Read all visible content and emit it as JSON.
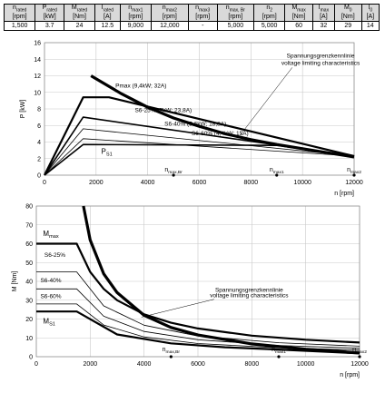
{
  "spec_table": {
    "headers": [
      "n_rated [rpm]",
      "P_rated [kW]",
      "M_rated [Nm]",
      "I_rated [A]",
      "n_max1 [rpm]",
      "n_max2 [rpm]",
      "n_max3 [rpm]",
      "n_max, Br [rpm]",
      "n_2 [rpm]",
      "M_max [Nm]",
      "I_max [A]",
      "M_0 [Nm]",
      "I_0 [A]"
    ],
    "header_main": [
      "n",
      "P",
      "M",
      "I",
      "n",
      "n",
      "n",
      "n",
      "n",
      "M",
      "I",
      "M",
      "I"
    ],
    "header_sub": [
      "rated",
      "rated",
      "rated",
      "rated",
      "max1",
      "max2",
      "max3",
      "max, Br",
      "2",
      "max",
      "max",
      "0",
      "0"
    ],
    "header_unit": [
      "[rpm]",
      "[kW]",
      "[Nm]",
      "[A]",
      "[rpm]",
      "[rpm]",
      "[rpm]",
      "[rpm]",
      "[rpm]",
      "[Nm]",
      "[A]",
      "[Nm]",
      "[A]"
    ],
    "values": [
      "1,500",
      "3.7",
      "24",
      "12.5",
      "9,000",
      "12,000",
      "-",
      "5,000",
      "5,000",
      "60",
      "32",
      "29",
      "14"
    ]
  },
  "chart_data": [
    {
      "type": "line",
      "xlabel": "n [rpm]",
      "ylabel": "P [kW]",
      "xlim": [
        0,
        12000
      ],
      "ylim": [
        0,
        16
      ],
      "xticks": [
        0,
        2000,
        4000,
        6000,
        8000,
        10000,
        12000
      ],
      "yticks": [
        0,
        2,
        4,
        6,
        8,
        10,
        12,
        14,
        16
      ],
      "grid": true,
      "series": [
        {
          "name": "Pmax (9,4kW; 32A)",
          "x": [
            0,
            1500,
            2500,
            12000
          ],
          "y": [
            0,
            9.4,
            9.4,
            2.3
          ]
        },
        {
          "name": "S6-25% (7kW; 23,8A)",
          "x": [
            0,
            1500,
            12000
          ],
          "y": [
            0,
            7.0,
            2.3
          ]
        },
        {
          "name": "S6-40% (5,6kW; 18,8A)",
          "x": [
            0,
            1500,
            12000
          ],
          "y": [
            0,
            5.6,
            2.3
          ]
        },
        {
          "name": "S6-60% (4,4kW; 15A)",
          "x": [
            0,
            1500,
            12000
          ],
          "y": [
            0,
            4.4,
            2.3
          ]
        },
        {
          "name": "P_S1",
          "x": [
            0,
            1500,
            9000,
            12000
          ],
          "y": [
            0,
            3.7,
            3.6,
            2.3
          ]
        },
        {
          "name": "Spannungsgrenzkennlinie voltage limiting characteristics",
          "x": [
            1800,
            3000,
            4000,
            5000,
            6000,
            7000,
            8000,
            9000,
            10000,
            11000,
            12000
          ],
          "y": [
            12.0,
            9.8,
            8.2,
            6.9,
            5.9,
            5.0,
            4.3,
            3.7,
            3.2,
            2.7,
            2.2
          ]
        }
      ],
      "labels": {
        "pmax": "Pmax (9,4kW; 32A)",
        "s625": "S6-25% (7kW; 23,8A)",
        "s640": "S6-40% (5,6kW; 18,8A)",
        "s660": "S6-60% (4,4kW; 15A)",
        "ps1_main": "P",
        "ps1_sub": "S1",
        "limit_de": "Spannungsgrenzkennlinie",
        "limit_en": "voltage limiting characteristics"
      },
      "markers": [
        {
          "x": 5000,
          "y": 0,
          "label_main": "n",
          "label_sub": "max,Br"
        },
        {
          "x": 9000,
          "y": 0,
          "label_main": "n",
          "label_sub": "max1"
        },
        {
          "x": 12000,
          "y": 0,
          "label_main": "n",
          "label_sub": "max2"
        }
      ]
    },
    {
      "type": "line",
      "xlabel": "n [rpm]",
      "ylabel": "M [Nm]",
      "xlim": [
        0,
        12000
      ],
      "ylim": [
        0,
        80
      ],
      "xticks": [
        0,
        2000,
        4000,
        6000,
        8000,
        10000,
        12000
      ],
      "yticks": [
        0,
        10,
        20,
        30,
        40,
        50,
        60,
        70,
        80
      ],
      "grid": true,
      "series": [
        {
          "name": "M_max",
          "x": [
            0,
            1500,
            2000,
            2500,
            3000,
            4000,
            5000,
            6000,
            8000,
            10000,
            12000
          ],
          "y": [
            60,
            60,
            45,
            36,
            30,
            22.5,
            18,
            15,
            11.2,
            9,
            7.5
          ]
        },
        {
          "name": "S6-25%",
          "x": [
            0,
            1500,
            2500,
            4000,
            6000,
            9000,
            12000
          ],
          "y": [
            45,
            45,
            27,
            16.7,
            11,
            7.4,
            5.6
          ]
        },
        {
          "name": "S6-40%",
          "x": [
            0,
            1500,
            2500,
            4000,
            6000,
            9000,
            12000
          ],
          "y": [
            36,
            36,
            21.5,
            13.4,
            9,
            6,
            4.5
          ]
        },
        {
          "name": "S6-60%",
          "x": [
            0,
            1500,
            2500,
            4000,
            6000,
            9000,
            12000
          ],
          "y": [
            28,
            28,
            16.8,
            10.5,
            7,
            4.7,
            3.5
          ]
        },
        {
          "name": "M_S1",
          "x": [
            0,
            1500,
            3000,
            5000,
            7000,
            9000,
            12000
          ],
          "y": [
            24,
            24,
            11.8,
            7.1,
            5,
            3.8,
            1.8
          ]
        },
        {
          "name": "Spannungsgrenzkennlinie voltage limiting characteristics",
          "x": [
            1750,
            2000,
            2500,
            3000,
            4000,
            5000,
            6000,
            8000,
            10000,
            12000
          ],
          "y": [
            80,
            62,
            44,
            34,
            22,
            15.5,
            11.5,
            6.8,
            4,
            2
          ]
        }
      ],
      "labels": {
        "mmax_main": "M",
        "mmax_sub": "max",
        "s625": "S6-25%",
        "s640": "S6-40%",
        "s660": "S6-60%",
        "ms1_main": "M",
        "ms1_sub": "S1",
        "limit_de": "Spannungsgrenzkennlinie",
        "limit_en": "voltage limiting characteristics"
      },
      "markers": [
        {
          "x": 5000,
          "y": 0,
          "label_main": "n",
          "label_sub": "max,Br"
        },
        {
          "x": 9000,
          "y": 0,
          "label_main": "n",
          "label_sub": "max1"
        },
        {
          "x": 12000,
          "y": 0,
          "label_main": "n",
          "label_sub": "max2"
        }
      ]
    }
  ]
}
